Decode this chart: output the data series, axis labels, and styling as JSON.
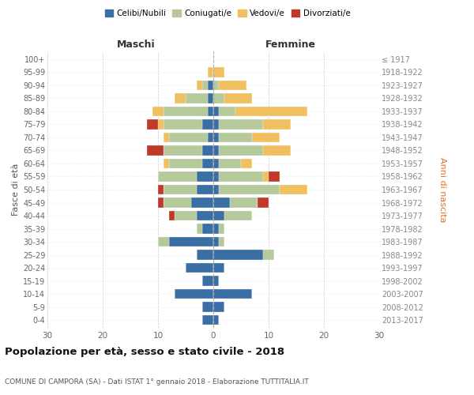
{
  "age_groups": [
    "0-4",
    "5-9",
    "10-14",
    "15-19",
    "20-24",
    "25-29",
    "30-34",
    "35-39",
    "40-44",
    "45-49",
    "50-54",
    "55-59",
    "60-64",
    "65-69",
    "70-74",
    "75-79",
    "80-84",
    "85-89",
    "90-94",
    "95-99",
    "100+"
  ],
  "birth_years": [
    "2013-2017",
    "2008-2012",
    "2003-2007",
    "1998-2002",
    "1993-1997",
    "1988-1992",
    "1983-1987",
    "1978-1982",
    "1973-1977",
    "1968-1972",
    "1963-1967",
    "1958-1962",
    "1953-1957",
    "1948-1952",
    "1943-1947",
    "1938-1942",
    "1933-1937",
    "1928-1932",
    "1923-1927",
    "1918-1922",
    "≤ 1917"
  ],
  "colors": {
    "celibe": "#3a6ea5",
    "coniugato": "#b5c99a",
    "vedovo": "#f0c060",
    "divorziato": "#c0392b"
  },
  "maschi": {
    "celibe": [
      2,
      2,
      7,
      2,
      5,
      3,
      8,
      2,
      3,
      4,
      3,
      3,
      2,
      2,
      1,
      2,
      1,
      1,
      1,
      0,
      0
    ],
    "coniugato": [
      0,
      0,
      0,
      0,
      0,
      0,
      2,
      1,
      4,
      5,
      6,
      7,
      6,
      7,
      7,
      7,
      8,
      4,
      1,
      0,
      0
    ],
    "vedovo": [
      0,
      0,
      0,
      0,
      0,
      0,
      0,
      0,
      0,
      0,
      0,
      0,
      1,
      0,
      1,
      1,
      2,
      2,
      1,
      1,
      0
    ],
    "divorziato": [
      0,
      0,
      0,
      0,
      0,
      0,
      0,
      0,
      1,
      1,
      1,
      0,
      0,
      3,
      0,
      2,
      0,
      0,
      0,
      0,
      0
    ]
  },
  "femmine": {
    "celibe": [
      1,
      2,
      7,
      1,
      2,
      9,
      1,
      1,
      2,
      3,
      1,
      1,
      1,
      1,
      1,
      1,
      1,
      0,
      0,
      0,
      0
    ],
    "coniugato": [
      0,
      0,
      0,
      0,
      0,
      2,
      1,
      1,
      5,
      5,
      11,
      8,
      4,
      8,
      6,
      8,
      3,
      2,
      1,
      0,
      0
    ],
    "vedovo": [
      0,
      0,
      0,
      0,
      0,
      0,
      0,
      0,
      0,
      0,
      5,
      1,
      2,
      5,
      5,
      5,
      13,
      5,
      5,
      2,
      0
    ],
    "divorziato": [
      0,
      0,
      0,
      0,
      0,
      0,
      0,
      0,
      0,
      2,
      0,
      2,
      0,
      0,
      0,
      0,
      0,
      0,
      0,
      0,
      0
    ]
  },
  "xlim": 30,
  "title": "Popolazione per età, sesso e stato civile - 2018",
  "subtitle": "COMUNE DI CAMPORA (SA) - Dati ISTAT 1° gennaio 2018 - Elaborazione TUTTITALIA.IT",
  "ylabel_left": "Fasce di età",
  "ylabel_right": "Anni di nascita",
  "xlabel_left": "Maschi",
  "xlabel_right": "Femmine",
  "legend_labels": [
    "Celibi/Nubili",
    "Coniugati/e",
    "Vedovi/e",
    "Divorziati/e"
  ],
  "background_color": "#ffffff",
  "bar_height": 0.75,
  "fig_width": 6.0,
  "fig_height": 5.0,
  "dpi": 100
}
